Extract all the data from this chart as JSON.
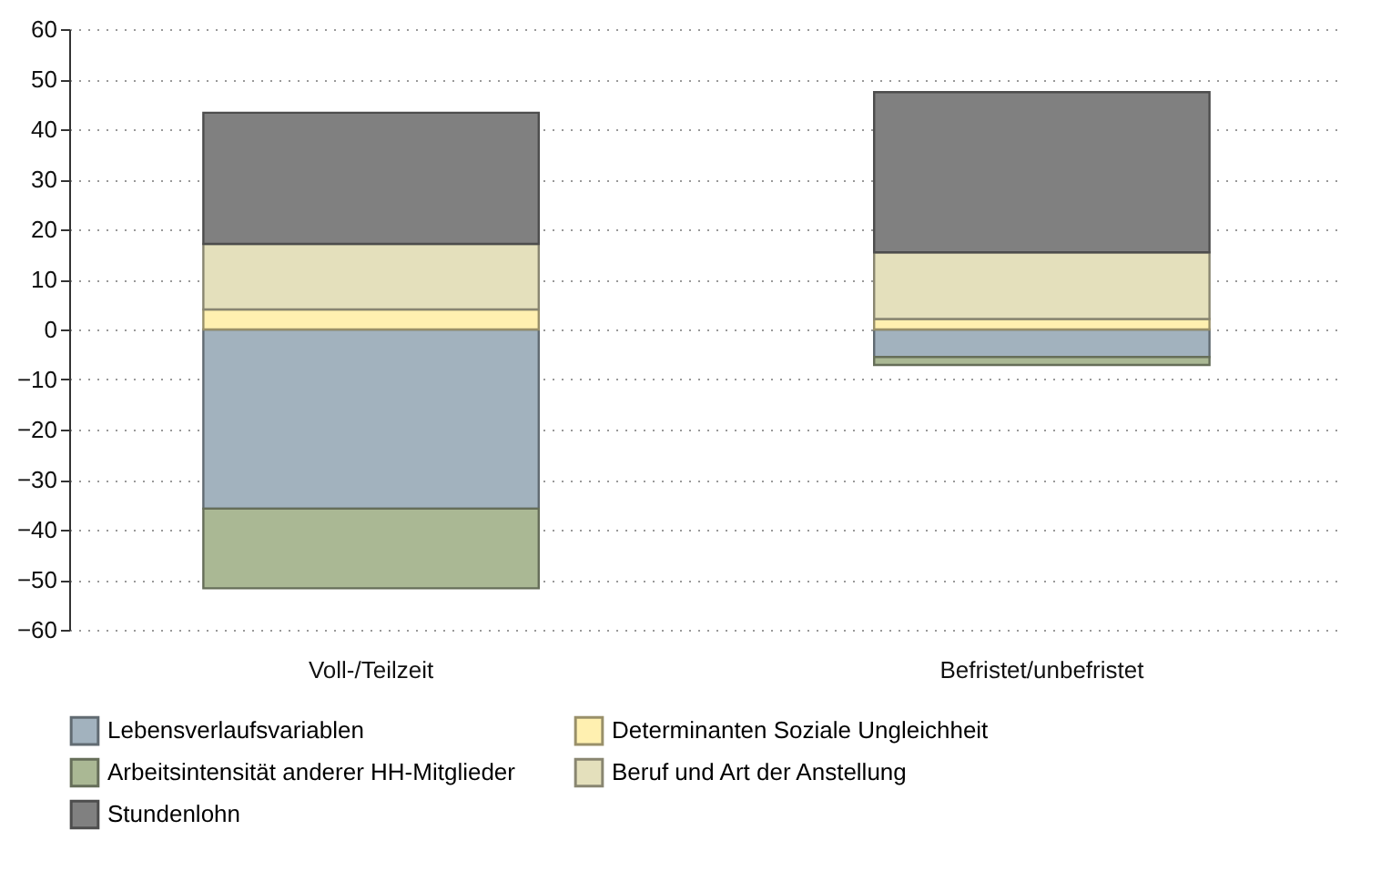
{
  "chart_data": {
    "type": "bar",
    "stacked": true,
    "categories": [
      "Voll-/Teilzeit",
      "Befristet/unbefristet"
    ],
    "series": [
      {
        "name": "Lebensverlaufsvariablen",
        "color": "#a2b2be",
        "values": [
          -35.8,
          -5.5
        ]
      },
      {
        "name": "Determinanten Soziale Ungleichheit",
        "color": "#fff0b0",
        "values": [
          4.0,
          2.1
        ]
      },
      {
        "name": "Arbeitsintensität anderer HH-Mitglieder",
        "color": "#aab894",
        "values": [
          -15.9,
          -1.6
        ]
      },
      {
        "name": "Beruf und Art der Anstellung",
        "color": "#e4e0bc",
        "values": [
          13.1,
          13.3
        ]
      },
      {
        "name": "Stundenlohn",
        "color": "#808080",
        "values": [
          26.2,
          32.0
        ]
      }
    ],
    "ylim": [
      -60,
      60
    ],
    "yticks": [
      -60,
      -50,
      -40,
      -30,
      -20,
      -10,
      0,
      10,
      20,
      30,
      40,
      50,
      60
    ],
    "grid": "y",
    "legend": "bottom"
  }
}
